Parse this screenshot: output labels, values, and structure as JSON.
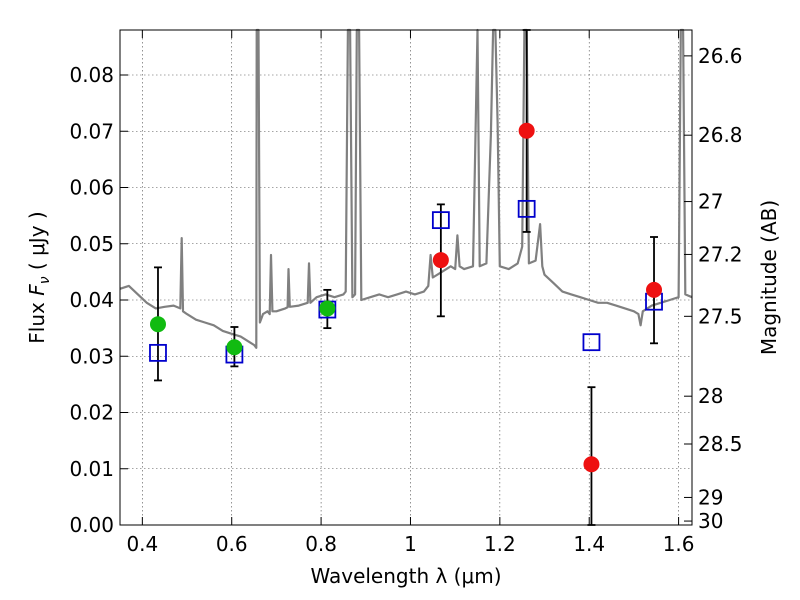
{
  "chart_data": {
    "type": "scatter",
    "xlabel": "Wavelength  λ (μm)",
    "ylabel": "Flux  F_ν  ( μJy )",
    "ylabel_right": "Magnitude (AB)",
    "xlim": [
      0.35,
      1.63
    ],
    "ylim": [
      0.0,
      0.088
    ],
    "grid": true,
    "x_ticks": [
      0.4,
      0.6,
      0.8,
      1.0,
      1.2,
      1.4,
      1.6
    ],
    "x_tick_labels": [
      "0.4",
      "0.6",
      "0.8",
      "1",
      "1.2",
      "1.4",
      "1.6"
    ],
    "y_ticks": [
      0.0,
      0.01,
      0.02,
      0.03,
      0.04,
      0.05,
      0.06,
      0.07,
      0.08
    ],
    "y_tick_labels": [
      "0.00",
      "0.01",
      "0.02",
      "0.03",
      "0.04",
      "0.05",
      "0.06",
      "0.07",
      "0.08"
    ],
    "right_ticks": [
      {
        "flux": 0.0007,
        "label": "30"
      },
      {
        "flux": 0.0049,
        "label": "29"
      },
      {
        "flux": 0.0144,
        "label": "28.5"
      },
      {
        "flux": 0.0229,
        "label": "28"
      },
      {
        "flux": 0.0371,
        "label": "27.5"
      },
      {
        "flux": 0.0481,
        "label": "27.2"
      },
      {
        "flux": 0.0575,
        "label": "27"
      },
      {
        "flux": 0.0693,
        "label": "26.8"
      },
      {
        "flux": 0.0834,
        "label": "26.6"
      }
    ],
    "series": [
      {
        "marker": "circle",
        "color": "#11bb11",
        "points": [
          {
            "x": 0.435,
            "y": 0.0357,
            "err": 0.0
          },
          {
            "x": 0.606,
            "y": 0.0316,
            "err": 0.0
          },
          {
            "x": 0.814,
            "y": 0.0385,
            "err": 0.0
          }
        ]
      },
      {
        "marker": "circle",
        "color": "#ee1111",
        "points": [
          {
            "x": 1.068,
            "y": 0.0471,
            "err": 0.0
          },
          {
            "x": 1.26,
            "y": 0.0701,
            "err": 0.0
          },
          {
            "x": 1.405,
            "y": 0.0108,
            "err": 0.0
          },
          {
            "x": 1.545,
            "y": 0.0418,
            "err": 0.0
          }
        ]
      },
      {
        "marker": "open-square",
        "color": "#0000cc",
        "points": [
          {
            "x": 0.435,
            "y": 0.0306
          },
          {
            "x": 0.606,
            "y": 0.0303
          },
          {
            "x": 0.814,
            "y": 0.0383
          },
          {
            "x": 1.068,
            "y": 0.0542
          },
          {
            "x": 1.26,
            "y": 0.0562
          },
          {
            "x": 1.405,
            "y": 0.0325
          },
          {
            "x": 1.545,
            "y": 0.0397
          }
        ]
      },
      {
        "marker": "errorbar",
        "color": "#000000",
        "points": [
          {
            "x": 0.435,
            "low": 0.0257,
            "high": 0.0458
          },
          {
            "x": 0.606,
            "low": 0.0282,
            "high": 0.0352
          },
          {
            "x": 0.814,
            "low": 0.035,
            "high": 0.0418
          },
          {
            "x": 1.068,
            "low": 0.0371,
            "high": 0.057
          },
          {
            "x": 1.26,
            "low": 0.0521,
            "high": 0.088
          },
          {
            "x": 1.405,
            "low": 0.0,
            "high": 0.0245
          },
          {
            "x": 1.545,
            "low": 0.0323,
            "high": 0.0512
          }
        ]
      },
      {
        "marker": "line",
        "color": "#808080",
        "points": [
          [
            0.35,
            0.042
          ],
          [
            0.37,
            0.0425
          ],
          [
            0.39,
            0.041
          ],
          [
            0.41,
            0.0395
          ],
          [
            0.43,
            0.0385
          ],
          [
            0.45,
            0.0388
          ],
          [
            0.47,
            0.039
          ],
          [
            0.485,
            0.0385
          ],
          [
            0.488,
            0.051
          ],
          [
            0.491,
            0.038
          ],
          [
            0.5,
            0.0375
          ],
          [
            0.52,
            0.0365
          ],
          [
            0.54,
            0.036
          ],
          [
            0.56,
            0.0355
          ],
          [
            0.58,
            0.0345
          ],
          [
            0.6,
            0.034
          ],
          [
            0.62,
            0.0335
          ],
          [
            0.64,
            0.0325
          ],
          [
            0.65,
            0.032
          ],
          [
            0.655,
            0.0315
          ],
          [
            0.656,
            0.088
          ],
          [
            0.66,
            0.088
          ],
          [
            0.663,
            0.036
          ],
          [
            0.67,
            0.0375
          ],
          [
            0.68,
            0.038
          ],
          [
            0.685,
            0.0375
          ],
          [
            0.688,
            0.048
          ],
          [
            0.691,
            0.038
          ],
          [
            0.7,
            0.038
          ],
          [
            0.72,
            0.0385
          ],
          [
            0.725,
            0.0387
          ],
          [
            0.727,
            0.0455
          ],
          [
            0.73,
            0.0388
          ],
          [
            0.75,
            0.039
          ],
          [
            0.77,
            0.0395
          ],
          [
            0.773,
            0.0465
          ],
          [
            0.776,
            0.0395
          ],
          [
            0.79,
            0.0405
          ],
          [
            0.81,
            0.041
          ],
          [
            0.83,
            0.0405
          ],
          [
            0.85,
            0.041
          ],
          [
            0.855,
            0.0415
          ],
          [
            0.86,
            0.088
          ],
          [
            0.865,
            0.088
          ],
          [
            0.87,
            0.0405
          ],
          [
            0.876,
            0.041
          ],
          [
            0.88,
            0.088
          ],
          [
            0.885,
            0.088
          ],
          [
            0.89,
            0.04
          ],
          [
            0.91,
            0.0405
          ],
          [
            0.93,
            0.041
          ],
          [
            0.95,
            0.0405
          ],
          [
            0.97,
            0.041
          ],
          [
            0.99,
            0.0415
          ],
          [
            1.01,
            0.041
          ],
          [
            1.03,
            0.0415
          ],
          [
            1.04,
            0.0425
          ],
          [
            1.045,
            0.048
          ],
          [
            1.05,
            0.044
          ],
          [
            1.07,
            0.045
          ],
          [
            1.09,
            0.046
          ],
          [
            1.1,
            0.0455
          ],
          [
            1.105,
            0.0515
          ],
          [
            1.11,
            0.046
          ],
          [
            1.12,
            0.0455
          ],
          [
            1.14,
            0.046
          ],
          [
            1.15,
            0.088
          ],
          [
            1.155,
            0.046
          ],
          [
            1.17,
            0.0465
          ],
          [
            1.18,
            0.0695
          ],
          [
            1.185,
            0.088
          ],
          [
            1.19,
            0.088
          ],
          [
            1.195,
            0.0715
          ],
          [
            1.2,
            0.046
          ],
          [
            1.22,
            0.0455
          ],
          [
            1.24,
            0.0465
          ],
          [
            1.25,
            0.0495
          ],
          [
            1.255,
            0.088
          ],
          [
            1.26,
            0.088
          ],
          [
            1.265,
            0.0465
          ],
          [
            1.28,
            0.047
          ],
          [
            1.29,
            0.0535
          ],
          [
            1.295,
            0.046
          ],
          [
            1.3,
            0.0445
          ],
          [
            1.32,
            0.043
          ],
          [
            1.34,
            0.0415
          ],
          [
            1.36,
            0.041
          ],
          [
            1.38,
            0.0405
          ],
          [
            1.4,
            0.04
          ],
          [
            1.42,
            0.0395
          ],
          [
            1.44,
            0.0395
          ],
          [
            1.46,
            0.039
          ],
          [
            1.48,
            0.0385
          ],
          [
            1.5,
            0.038
          ],
          [
            1.51,
            0.0375
          ],
          [
            1.515,
            0.0355
          ],
          [
            1.52,
            0.038
          ],
          [
            1.54,
            0.039
          ],
          [
            1.56,
            0.0395
          ],
          [
            1.58,
            0.04
          ],
          [
            1.6,
            0.0405
          ],
          [
            1.605,
            0.088
          ],
          [
            1.61,
            0.088
          ],
          [
            1.615,
            0.041
          ],
          [
            1.63,
            0.0405
          ]
        ]
      }
    ]
  }
}
